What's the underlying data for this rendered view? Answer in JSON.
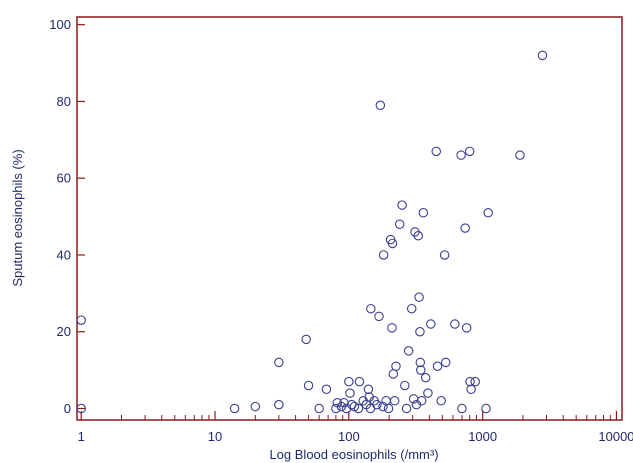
{
  "chart_data": {
    "type": "scatter",
    "xlabel": "Log Blood eosinophils (/mm³)",
    "ylabel": "Sputum eosinophils (%)",
    "x_scale": "log",
    "xlim": [
      0.93,
      11000
    ],
    "ylim": [
      -3,
      102
    ],
    "x_ticks": [
      {
        "value": 1,
        "label": "1"
      },
      {
        "value": 10,
        "label": "10"
      },
      {
        "value": 100,
        "label": "100"
      },
      {
        "value": 1000,
        "label": "1000"
      },
      {
        "value": 10000,
        "label": "10000"
      }
    ],
    "y_ticks": [
      {
        "value": 0,
        "label": "0"
      },
      {
        "value": 20,
        "label": "20"
      },
      {
        "value": 40,
        "label": "40"
      },
      {
        "value": 60,
        "label": "60"
      },
      {
        "value": 80,
        "label": "80"
      },
      {
        "value": 100,
        "label": "100"
      }
    ],
    "grid": false,
    "colors": {
      "frame": "#8b1a1a",
      "marker": "#3a3f8f",
      "text": "#1f2a6b"
    },
    "points": [
      {
        "x": 1,
        "y": 23
      },
      {
        "x": 1,
        "y": 0
      },
      {
        "x": 14,
        "y": 0
      },
      {
        "x": 20,
        "y": 0.5
      },
      {
        "x": 30,
        "y": 1
      },
      {
        "x": 30,
        "y": 12
      },
      {
        "x": 48,
        "y": 18
      },
      {
        "x": 50,
        "y": 6
      },
      {
        "x": 60,
        "y": 0
      },
      {
        "x": 68,
        "y": 5
      },
      {
        "x": 80,
        "y": 0
      },
      {
        "x": 82,
        "y": 1.5
      },
      {
        "x": 88,
        "y": 0.5
      },
      {
        "x": 92,
        "y": 1.5
      },
      {
        "x": 96,
        "y": 0
      },
      {
        "x": 100,
        "y": 7
      },
      {
        "x": 102,
        "y": 4
      },
      {
        "x": 105,
        "y": 1
      },
      {
        "x": 110,
        "y": 0.5
      },
      {
        "x": 118,
        "y": 0
      },
      {
        "x": 120,
        "y": 7
      },
      {
        "x": 128,
        "y": 2
      },
      {
        "x": 135,
        "y": 1
      },
      {
        "x": 140,
        "y": 5
      },
      {
        "x": 142,
        "y": 3
      },
      {
        "x": 145,
        "y": 0
      },
      {
        "x": 146,
        "y": 26
      },
      {
        "x": 155,
        "y": 2
      },
      {
        "x": 162,
        "y": 1
      },
      {
        "x": 168,
        "y": 24
      },
      {
        "x": 172,
        "y": 79
      },
      {
        "x": 180,
        "y": 0.5
      },
      {
        "x": 182,
        "y": 40
      },
      {
        "x": 190,
        "y": 2
      },
      {
        "x": 198,
        "y": 0
      },
      {
        "x": 205,
        "y": 44
      },
      {
        "x": 210,
        "y": 21
      },
      {
        "x": 212,
        "y": 43
      },
      {
        "x": 215,
        "y": 9
      },
      {
        "x": 220,
        "y": 2
      },
      {
        "x": 225,
        "y": 11
      },
      {
        "x": 240,
        "y": 48
      },
      {
        "x": 250,
        "y": 53
      },
      {
        "x": 262,
        "y": 6
      },
      {
        "x": 270,
        "y": 0
      },
      {
        "x": 280,
        "y": 15
      },
      {
        "x": 295,
        "y": 26
      },
      {
        "x": 305,
        "y": 2.5
      },
      {
        "x": 312,
        "y": 46
      },
      {
        "x": 320,
        "y": 1
      },
      {
        "x": 330,
        "y": 45
      },
      {
        "x": 335,
        "y": 29
      },
      {
        "x": 340,
        "y": 20
      },
      {
        "x": 342,
        "y": 12
      },
      {
        "x": 345,
        "y": 10
      },
      {
        "x": 350,
        "y": 2
      },
      {
        "x": 360,
        "y": 51
      },
      {
        "x": 375,
        "y": 8
      },
      {
        "x": 390,
        "y": 4
      },
      {
        "x": 410,
        "y": 22
      },
      {
        "x": 450,
        "y": 67
      },
      {
        "x": 460,
        "y": 11
      },
      {
        "x": 490,
        "y": 2
      },
      {
        "x": 520,
        "y": 40
      },
      {
        "x": 530,
        "y": 12
      },
      {
        "x": 620,
        "y": 22
      },
      {
        "x": 690,
        "y": 66
      },
      {
        "x": 700,
        "y": 0
      },
      {
        "x": 740,
        "y": 47
      },
      {
        "x": 760,
        "y": 21
      },
      {
        "x": 800,
        "y": 67
      },
      {
        "x": 805,
        "y": 7
      },
      {
        "x": 820,
        "y": 5
      },
      {
        "x": 880,
        "y": 7
      },
      {
        "x": 1060,
        "y": 0
      },
      {
        "x": 1100,
        "y": 51
      },
      {
        "x": 1900,
        "y": 66
      },
      {
        "x": 2800,
        "y": 92
      }
    ]
  }
}
